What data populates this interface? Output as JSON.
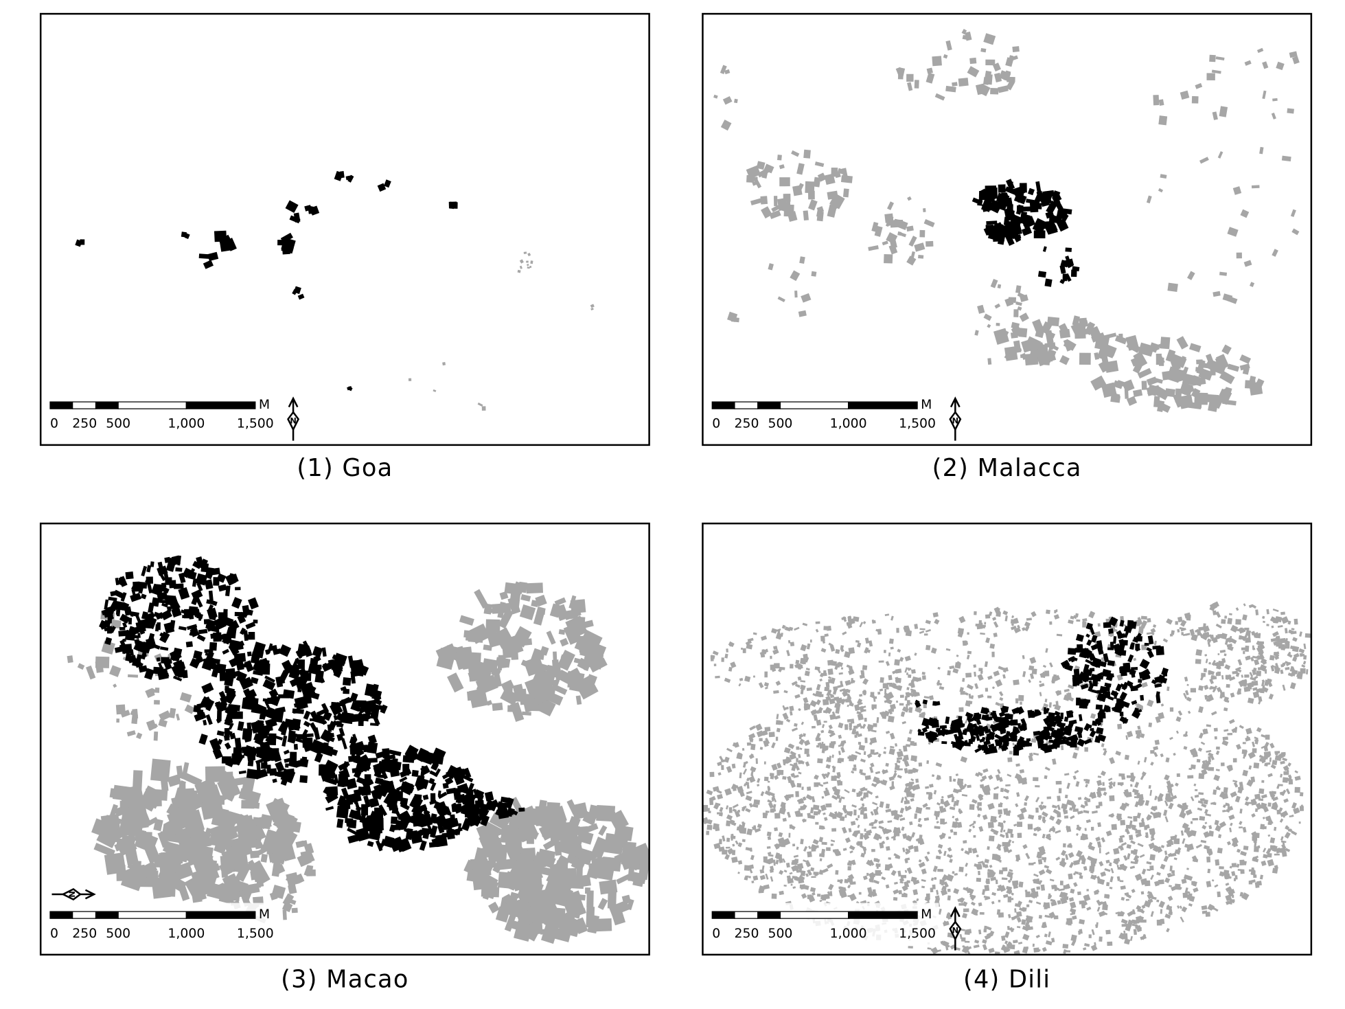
{
  "panels": [
    {
      "caption": "(1) Goa",
      "scale_labels": [
        "0",
        "250",
        "500",
        "1,000",
        "1,500"
      ],
      "unit": "M",
      "north": "N"
    },
    {
      "caption": "(2) Malacca",
      "scale_labels": [
        "0",
        "250",
        "500",
        "1,000",
        "1,500"
      ],
      "unit": "M",
      "north": "N"
    },
    {
      "caption": "(3) Macao",
      "scale_labels": [
        "0",
        "250",
        "500",
        "1,000",
        "1,500"
      ],
      "unit": "M",
      "north": "N"
    },
    {
      "caption": "(4) Dili",
      "scale_labels": [
        "0",
        "250",
        "500",
        "1,000",
        "1,500"
      ],
      "unit": "M",
      "north": "N"
    }
  ]
}
